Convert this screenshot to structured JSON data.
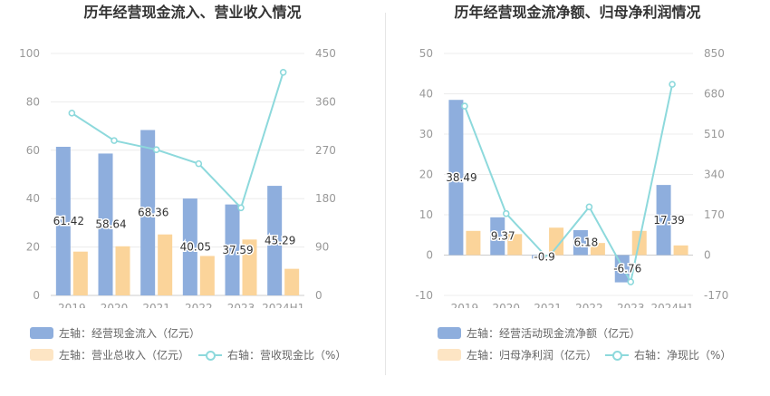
{
  "charts": {
    "left": {
      "title": "历年经营现金流入、营业收入情况",
      "legend": {
        "bar1": "左轴：经营现金流入（亿元）",
        "bar2": "左轴：营业总收入（亿元）",
        "line": "右轴：营收现金比（%）"
      }
    },
    "right": {
      "title": "历年经营现金流净额、归母净利润情况",
      "legend": {
        "bar1": "左轴：经营活动现金流净额（亿元）",
        "bar2": "左轴：归母净利润（亿元）",
        "line": "右轴：净现比（%）"
      }
    }
  },
  "colors": {
    "bar1": "#8eaedd",
    "bar2": "#fbd49a",
    "line": "#8dd9dc",
    "axis_text": "#999999",
    "label_text": "#333333",
    "grid": "#ececec"
  },
  "chart_data": [
    {
      "type": "bar",
      "title": "历年经营现金流入、营业收入情况",
      "categories": [
        "2019",
        "2020",
        "2021",
        "2022",
        "2023",
        "2024H1"
      ],
      "left_axis": {
        "ylim": [
          0,
          100
        ],
        "ticks": [
          "0",
          "20",
          "40",
          "60",
          "80",
          "100"
        ]
      },
      "right_axis": {
        "ylim": [
          0,
          450
        ],
        "ticks": [
          "0",
          "90",
          "180",
          "270",
          "360",
          "450"
        ]
      },
      "series": [
        {
          "name": "左轴：经营现金流入（亿元）",
          "axis": "left",
          "kind": "bar",
          "values": [
            61.42,
            58.64,
            68.36,
            40.05,
            37.59,
            45.29
          ],
          "labels": [
            "61.42",
            "58.64",
            "68.36",
            "40.05",
            "37.59",
            "45.29"
          ]
        },
        {
          "name": "左轴：营业总收入（亿元）",
          "axis": "left",
          "kind": "bar",
          "values": [
            18.1,
            20.3,
            25.2,
            16.3,
            23.1,
            11.0
          ]
        },
        {
          "name": "右轴：营收现金比（%）",
          "axis": "right",
          "kind": "line",
          "values": [
            339,
            288,
            271,
            245,
            163,
            415
          ]
        }
      ],
      "grid": true,
      "legend_position": "bottom-left"
    },
    {
      "type": "bar",
      "title": "历年经营现金流净额、归母净利润情况",
      "categories": [
        "2019",
        "2020",
        "2021",
        "2022",
        "2023",
        "2024H1"
      ],
      "left_axis": {
        "ylim": [
          -10,
          50
        ],
        "ticks": [
          "-10",
          "0",
          "10",
          "20",
          "30",
          "40",
          "50"
        ]
      },
      "right_axis": {
        "ylim": [
          -170,
          850
        ],
        "ticks": [
          "-170",
          "0",
          "170",
          "340",
          "510",
          "680",
          "850"
        ]
      },
      "series": [
        {
          "name": "左轴：经营活动现金流净额（亿元）",
          "axis": "left",
          "kind": "bar",
          "values": [
            38.49,
            9.37,
            -0.9,
            6.18,
            -6.76,
            17.39
          ],
          "labels": [
            "38.49",
            "9.37",
            "-0.9",
            "6.18",
            "-6.76",
            "17.39"
          ]
        },
        {
          "name": "左轴：归母净利润（亿元）",
          "axis": "left",
          "kind": "bar",
          "values": [
            6.0,
            5.2,
            6.8,
            3.0,
            6.0,
            2.4
          ]
        },
        {
          "name": "右轴：净现比（%）",
          "axis": "right",
          "kind": "line",
          "values": [
            628,
            175,
            -13,
            203,
            -113,
            720
          ]
        }
      ],
      "grid": true,
      "legend_position": "bottom-left"
    }
  ]
}
